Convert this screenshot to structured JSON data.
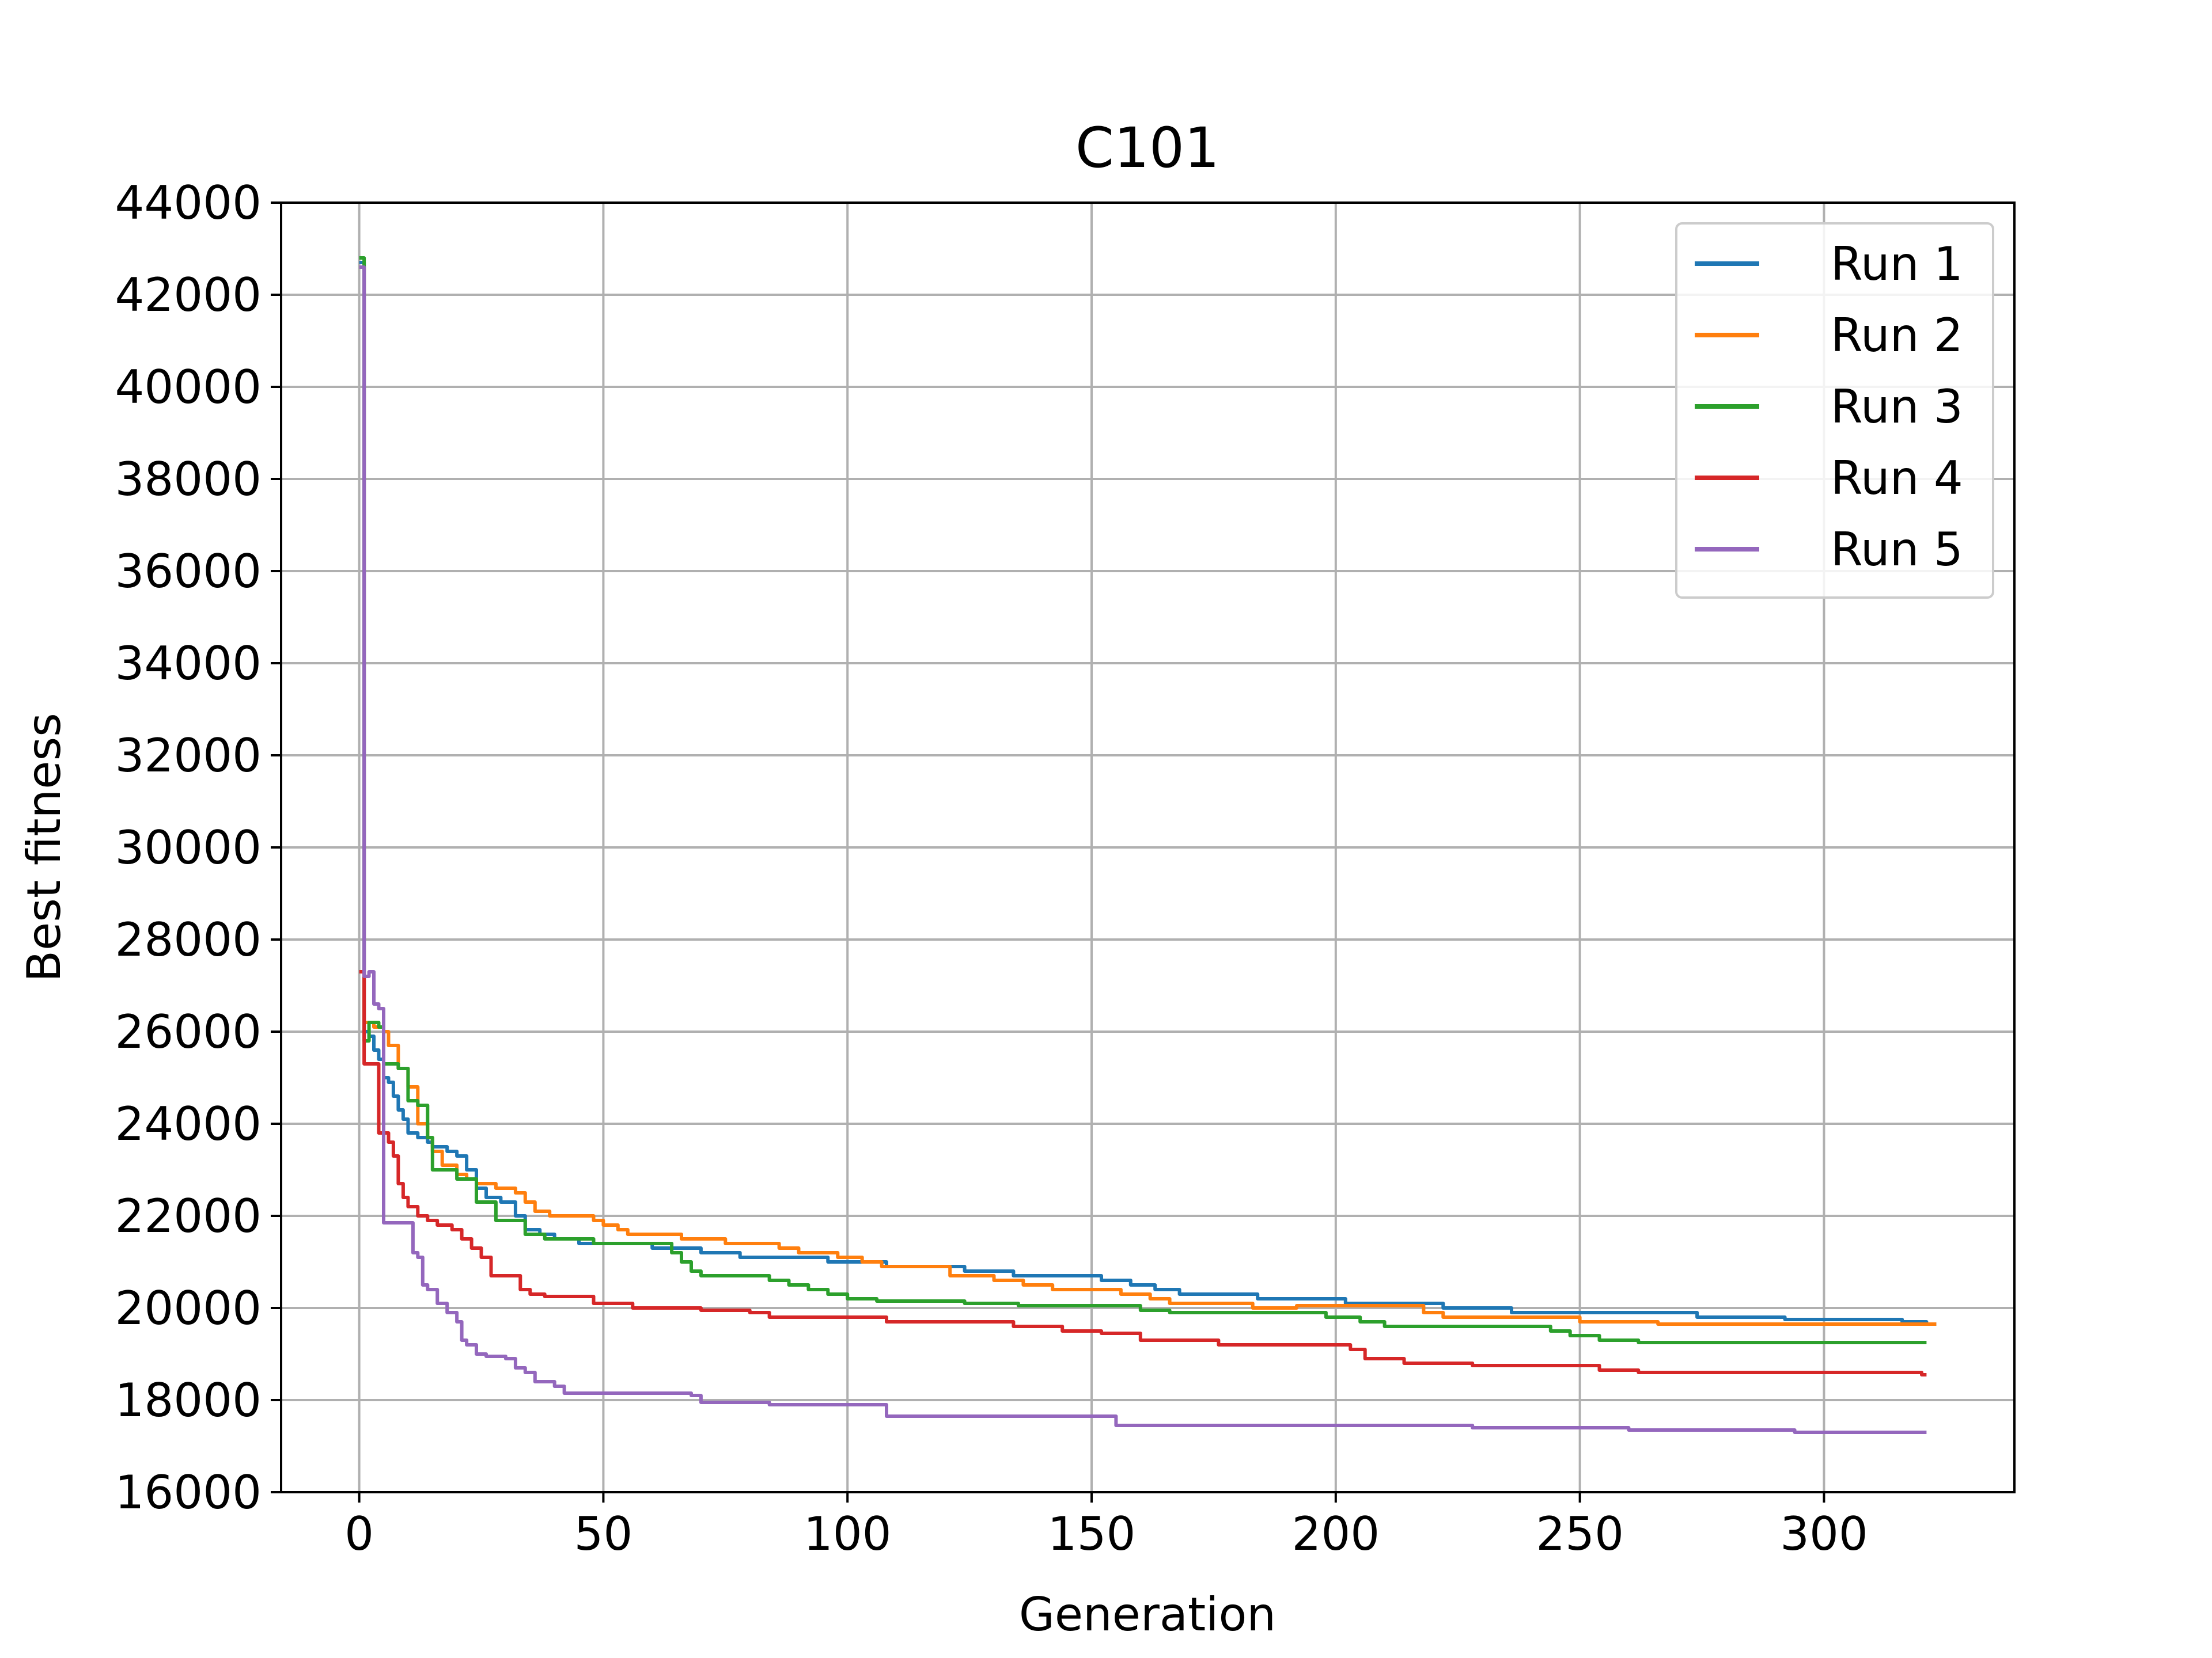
{
  "chart_data": {
    "type": "line",
    "title": "C101",
    "xlabel": "Generation",
    "ylabel": "Best fitness",
    "xlim": [
      -16,
      339
    ],
    "ylim": [
      16000,
      44000
    ],
    "xticks": [
      0,
      50,
      100,
      150,
      200,
      250,
      300
    ],
    "yticks": [
      16000,
      18000,
      20000,
      22000,
      24000,
      26000,
      28000,
      30000,
      32000,
      34000,
      36000,
      38000,
      40000,
      42000,
      44000
    ],
    "grid": true,
    "legend_position": "top-right",
    "series": [
      {
        "name": "Run 1",
        "color": "#1f77b4",
        "points": [
          [
            0,
            42700
          ],
          [
            1,
            26000
          ],
          [
            2,
            25900
          ],
          [
            3,
            25600
          ],
          [
            4,
            25400
          ],
          [
            5,
            25000
          ],
          [
            6,
            24900
          ],
          [
            7,
            24600
          ],
          [
            8,
            24300
          ],
          [
            9,
            24100
          ],
          [
            10,
            23800
          ],
          [
            12,
            23700
          ],
          [
            14,
            23600
          ],
          [
            15,
            23500
          ],
          [
            18,
            23400
          ],
          [
            20,
            23300
          ],
          [
            22,
            23000
          ],
          [
            24,
            22600
          ],
          [
            26,
            22400
          ],
          [
            29,
            22300
          ],
          [
            32,
            22000
          ],
          [
            34,
            21700
          ],
          [
            37,
            21600
          ],
          [
            40,
            21500
          ],
          [
            45,
            21400
          ],
          [
            50,
            21400
          ],
          [
            55,
            21400
          ],
          [
            60,
            21300
          ],
          [
            66,
            21300
          ],
          [
            70,
            21200
          ],
          [
            75,
            21200
          ],
          [
            78,
            21100
          ],
          [
            90,
            21100
          ],
          [
            96,
            21000
          ],
          [
            104,
            21000
          ],
          [
            108,
            20900
          ],
          [
            120,
            20900
          ],
          [
            124,
            20800
          ],
          [
            132,
            20800
          ],
          [
            134,
            20700
          ],
          [
            148,
            20700
          ],
          [
            152,
            20600
          ],
          [
            155,
            20600
          ],
          [
            158,
            20500
          ],
          [
            163,
            20400
          ],
          [
            168,
            20300
          ],
          [
            182,
            20300
          ],
          [
            184,
            20200
          ],
          [
            198,
            20200
          ],
          [
            202,
            20100
          ],
          [
            220,
            20100
          ],
          [
            222,
            20000
          ],
          [
            232,
            20000
          ],
          [
            236,
            19900
          ],
          [
            272,
            19900
          ],
          [
            274,
            19800
          ],
          [
            290,
            19800
          ],
          [
            292,
            19750
          ],
          [
            316,
            19700
          ],
          [
            321,
            19650
          ],
          [
            323,
            19650
          ]
        ]
      },
      {
        "name": "Run 2",
        "color": "#ff7f0e",
        "points": [
          [
            0,
            42600
          ],
          [
            1,
            26200
          ],
          [
            3,
            26100
          ],
          [
            5,
            26000
          ],
          [
            6,
            25700
          ],
          [
            8,
            25200
          ],
          [
            10,
            24800
          ],
          [
            12,
            24000
          ],
          [
            14,
            23700
          ],
          [
            15,
            23400
          ],
          [
            17,
            23100
          ],
          [
            20,
            22900
          ],
          [
            22,
            22800
          ],
          [
            24,
            22700
          ],
          [
            28,
            22600
          ],
          [
            32,
            22500
          ],
          [
            34,
            22300
          ],
          [
            36,
            22100
          ],
          [
            39,
            22000
          ],
          [
            46,
            22000
          ],
          [
            48,
            21900
          ],
          [
            50,
            21800
          ],
          [
            53,
            21700
          ],
          [
            55,
            21600
          ],
          [
            64,
            21600
          ],
          [
            66,
            21500
          ],
          [
            72,
            21500
          ],
          [
            75,
            21400
          ],
          [
            84,
            21400
          ],
          [
            86,
            21300
          ],
          [
            90,
            21200
          ],
          [
            98,
            21100
          ],
          [
            103,
            21000
          ],
          [
            107,
            20900
          ],
          [
            118,
            20900
          ],
          [
            121,
            20700
          ],
          [
            130,
            20600
          ],
          [
            136,
            20500
          ],
          [
            142,
            20400
          ],
          [
            153,
            20400
          ],
          [
            156,
            20300
          ],
          [
            162,
            20200
          ],
          [
            166,
            20100
          ],
          [
            178,
            20100
          ],
          [
            183,
            20000
          ],
          [
            192,
            20050
          ],
          [
            216,
            20050
          ],
          [
            218,
            19900
          ],
          [
            222,
            19800
          ],
          [
            247,
            19800
          ],
          [
            250,
            19700
          ],
          [
            262,
            19700
          ],
          [
            266,
            19650
          ],
          [
            300,
            19650
          ],
          [
            323,
            19650
          ]
        ]
      },
      {
        "name": "Run 3",
        "color": "#2ca02c",
        "points": [
          [
            0,
            42800
          ],
          [
            1,
            25800
          ],
          [
            2,
            26200
          ],
          [
            4,
            26100
          ],
          [
            5,
            25300
          ],
          [
            8,
            25200
          ],
          [
            10,
            24500
          ],
          [
            12,
            24400
          ],
          [
            14,
            23700
          ],
          [
            15,
            23000
          ],
          [
            18,
            23000
          ],
          [
            20,
            22800
          ],
          [
            24,
            22300
          ],
          [
            28,
            21900
          ],
          [
            34,
            21600
          ],
          [
            38,
            21500
          ],
          [
            44,
            21500
          ],
          [
            48,
            21400
          ],
          [
            58,
            21400
          ],
          [
            64,
            21200
          ],
          [
            66,
            21000
          ],
          [
            68,
            20800
          ],
          [
            70,
            20700
          ],
          [
            80,
            20700
          ],
          [
            84,
            20600
          ],
          [
            88,
            20500
          ],
          [
            92,
            20400
          ],
          [
            96,
            20300
          ],
          [
            100,
            20200
          ],
          [
            104,
            20200
          ],
          [
            106,
            20150
          ],
          [
            120,
            20150
          ],
          [
            124,
            20100
          ],
          [
            135,
            20050
          ],
          [
            155,
            20050
          ],
          [
            160,
            19950
          ],
          [
            166,
            19900
          ],
          [
            190,
            19900
          ],
          [
            198,
            19800
          ],
          [
            205,
            19700
          ],
          [
            210,
            19600
          ],
          [
            240,
            19600
          ],
          [
            244,
            19500
          ],
          [
            248,
            19400
          ],
          [
            254,
            19300
          ],
          [
            262,
            19250
          ],
          [
            290,
            19250
          ],
          [
            321,
            19250
          ]
        ]
      },
      {
        "name": "Run 4",
        "color": "#d62728",
        "points": [
          [
            0,
            27300
          ],
          [
            1,
            25300
          ],
          [
            2,
            25300
          ],
          [
            3,
            25300
          ],
          [
            4,
            23800
          ],
          [
            6,
            23600
          ],
          [
            7,
            23300
          ],
          [
            8,
            22700
          ],
          [
            9,
            22400
          ],
          [
            10,
            22200
          ],
          [
            12,
            22000
          ],
          [
            14,
            21900
          ],
          [
            16,
            21800
          ],
          [
            19,
            21700
          ],
          [
            21,
            21500
          ],
          [
            23,
            21300
          ],
          [
            25,
            21100
          ],
          [
            27,
            20700
          ],
          [
            31,
            20700
          ],
          [
            33,
            20400
          ],
          [
            35,
            20300
          ],
          [
            38,
            20250
          ],
          [
            46,
            20250
          ],
          [
            48,
            20100
          ],
          [
            52,
            20100
          ],
          [
            56,
            20000
          ],
          [
            66,
            20000
          ],
          [
            70,
            19950
          ],
          [
            80,
            19900
          ],
          [
            84,
            19800
          ],
          [
            106,
            19800
          ],
          [
            108,
            19700
          ],
          [
            132,
            19700
          ],
          [
            134,
            19600
          ],
          [
            140,
            19600
          ],
          [
            144,
            19500
          ],
          [
            152,
            19450
          ],
          [
            160,
            19300
          ],
          [
            172,
            19300
          ],
          [
            176,
            19200
          ],
          [
            200,
            19200
          ],
          [
            203,
            19100
          ],
          [
            206,
            18900
          ],
          [
            210,
            18900
          ],
          [
            214,
            18800
          ],
          [
            226,
            18800
          ],
          [
            228,
            18750
          ],
          [
            250,
            18750
          ],
          [
            254,
            18650
          ],
          [
            262,
            18600
          ],
          [
            318,
            18600
          ],
          [
            320,
            18550
          ],
          [
            321,
            18550
          ]
        ]
      },
      {
        "name": "Run 5",
        "color": "#9467bd",
        "points": [
          [
            0,
            42600
          ],
          [
            1,
            27200
          ],
          [
            2,
            27300
          ],
          [
            3,
            26600
          ],
          [
            4,
            26500
          ],
          [
            5,
            21850
          ],
          [
            10,
            21850
          ],
          [
            11,
            21200
          ],
          [
            12,
            21100
          ],
          [
            13,
            20500
          ],
          [
            14,
            20400
          ],
          [
            16,
            20100
          ],
          [
            18,
            19900
          ],
          [
            20,
            19700
          ],
          [
            21,
            19300
          ],
          [
            22,
            19200
          ],
          [
            24,
            19000
          ],
          [
            26,
            18950
          ],
          [
            30,
            18900
          ],
          [
            32,
            18700
          ],
          [
            34,
            18600
          ],
          [
            36,
            18400
          ],
          [
            40,
            18300
          ],
          [
            42,
            18150
          ],
          [
            46,
            18150
          ],
          [
            64,
            18150
          ],
          [
            68,
            18100
          ],
          [
            70,
            17950
          ],
          [
            80,
            17950
          ],
          [
            84,
            17900
          ],
          [
            98,
            17900
          ],
          [
            106,
            17900
          ],
          [
            108,
            17650
          ],
          [
            153,
            17650
          ],
          [
            155,
            17450
          ],
          [
            226,
            17450
          ],
          [
            228,
            17400
          ],
          [
            256,
            17400
          ],
          [
            260,
            17350
          ],
          [
            290,
            17350
          ],
          [
            294,
            17300
          ],
          [
            321,
            17300
          ]
        ]
      }
    ]
  }
}
